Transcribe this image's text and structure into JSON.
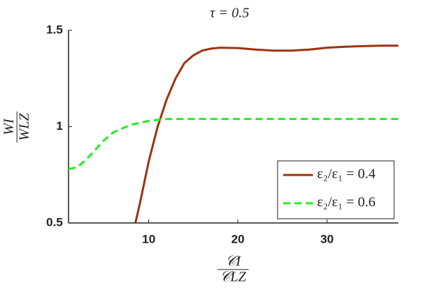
{
  "chart_data": {
    "type": "line",
    "title": "τ = 0.5",
    "ylabel": {
      "numerator": "WI",
      "denominator": "WLZ"
    },
    "xlabel": {
      "numerator": "𝒞I",
      "denominator": "𝒞LZ"
    },
    "x": [
      1,
      2,
      3,
      4,
      5,
      6,
      7,
      8,
      8.5,
      9,
      10,
      11,
      12,
      13,
      14,
      15,
      16,
      17,
      18,
      20,
      22,
      24,
      26,
      28,
      30,
      32,
      34,
      36,
      38
    ],
    "series": [
      {
        "name": "ε₂/ε₁ = 0.4",
        "color": "#9c3412",
        "dash": false,
        "values": [
          null,
          null,
          null,
          null,
          null,
          null,
          null,
          null,
          0.5,
          0.6,
          0.82,
          1.0,
          1.14,
          1.25,
          1.33,
          1.37,
          1.395,
          1.405,
          1.41,
          1.408,
          1.4,
          1.395,
          1.395,
          1.4,
          1.41,
          1.415,
          1.418,
          1.42,
          1.42
        ]
      },
      {
        "name": "ε₂/ε₁ = 0.6",
        "color": "#22ee22",
        "dash": true,
        "values": [
          0.78,
          0.79,
          0.83,
          0.88,
          0.93,
          0.97,
          0.99,
          1.01,
          1.015,
          1.02,
          1.03,
          1.035,
          1.04,
          1.04,
          1.04,
          1.04,
          1.04,
          1.04,
          1.04,
          1.04,
          1.04,
          1.04,
          1.04,
          1.04,
          1.04,
          1.04,
          1.04,
          1.04,
          1.04
        ]
      }
    ],
    "xlim": [
      1,
      38
    ],
    "ylim": [
      0.5,
      1.5
    ],
    "xticks": [
      10,
      20,
      30
    ],
    "yticks": [
      0.5,
      1,
      1.5
    ],
    "legend": "lower right"
  }
}
